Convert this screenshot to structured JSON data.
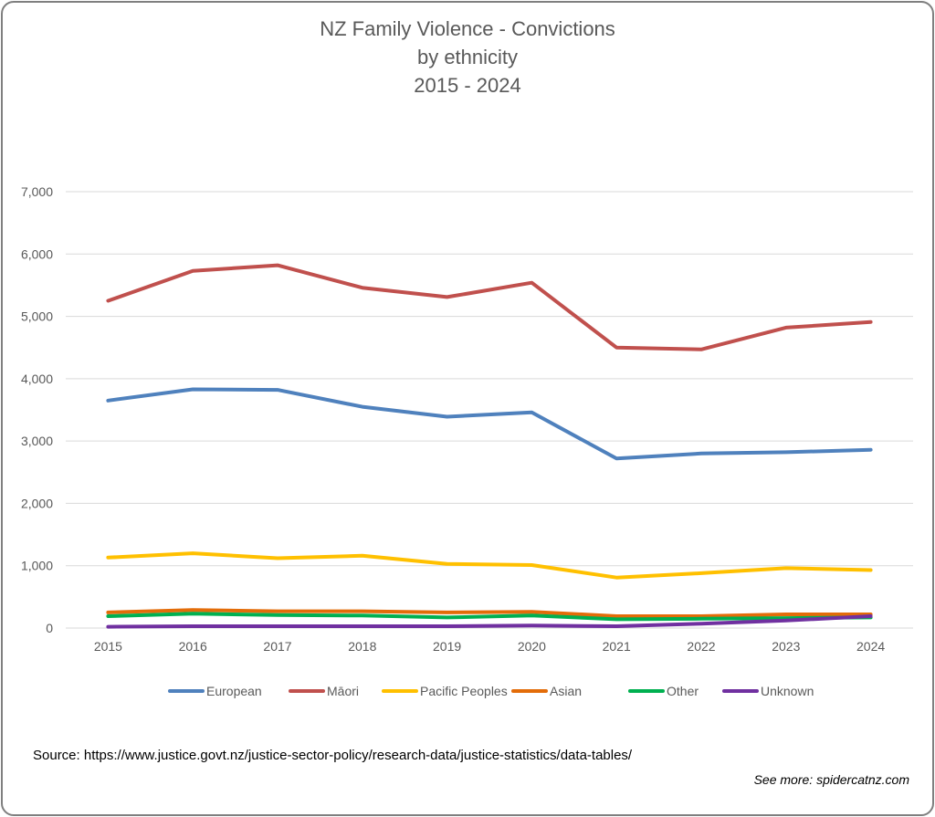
{
  "chart_data": {
    "type": "line",
    "title_lines": [
      "NZ Family Violence - Convictions",
      "by ethnicity",
      "2015 - 2024"
    ],
    "x": [
      "2015",
      "2016",
      "2017",
      "2018",
      "2019",
      "2020",
      "2021",
      "2022",
      "2023",
      "2024"
    ],
    "ylim": [
      0,
      7000
    ],
    "yticks": [
      0,
      1000,
      2000,
      3000,
      4000,
      5000,
      6000,
      7000
    ],
    "ytick_labels": [
      "0",
      "1,000",
      "2,000",
      "3,000",
      "4,000",
      "5,000",
      "6,000",
      "7,000"
    ],
    "grid": true,
    "legend_position": "bottom",
    "series": [
      {
        "name": "European",
        "color": "#4f81bd",
        "values": [
          3650,
          3830,
          3820,
          3550,
          3390,
          3460,
          2720,
          2800,
          2820,
          2860
        ]
      },
      {
        "name": "Māori",
        "color": "#c0504d",
        "values": [
          5250,
          5730,
          5820,
          5460,
          5310,
          5540,
          4500,
          4470,
          4820,
          4910
        ]
      },
      {
        "name": "Pacific Peoples",
        "color": "#ffc000",
        "values": [
          1130,
          1200,
          1120,
          1160,
          1030,
          1010,
          810,
          880,
          960,
          930
        ]
      },
      {
        "name": "Asian",
        "color": "#e36c09",
        "values": [
          250,
          290,
          270,
          270,
          250,
          260,
          190,
          190,
          220,
          220
        ]
      },
      {
        "name": "Other",
        "color": "#00b050",
        "values": [
          190,
          230,
          210,
          200,
          170,
          200,
          140,
          150,
          160,
          170
        ]
      },
      {
        "name": "Unknown",
        "color": "#7030a0",
        "values": [
          20,
          30,
          30,
          30,
          30,
          40,
          30,
          70,
          120,
          190
        ]
      }
    ]
  },
  "footer": {
    "source": "Source: https://www.justice.govt.nz/justice-sector-policy/research-data/justice-statistics/data-tables/",
    "see_more": "See more: spidercatnz.com"
  }
}
